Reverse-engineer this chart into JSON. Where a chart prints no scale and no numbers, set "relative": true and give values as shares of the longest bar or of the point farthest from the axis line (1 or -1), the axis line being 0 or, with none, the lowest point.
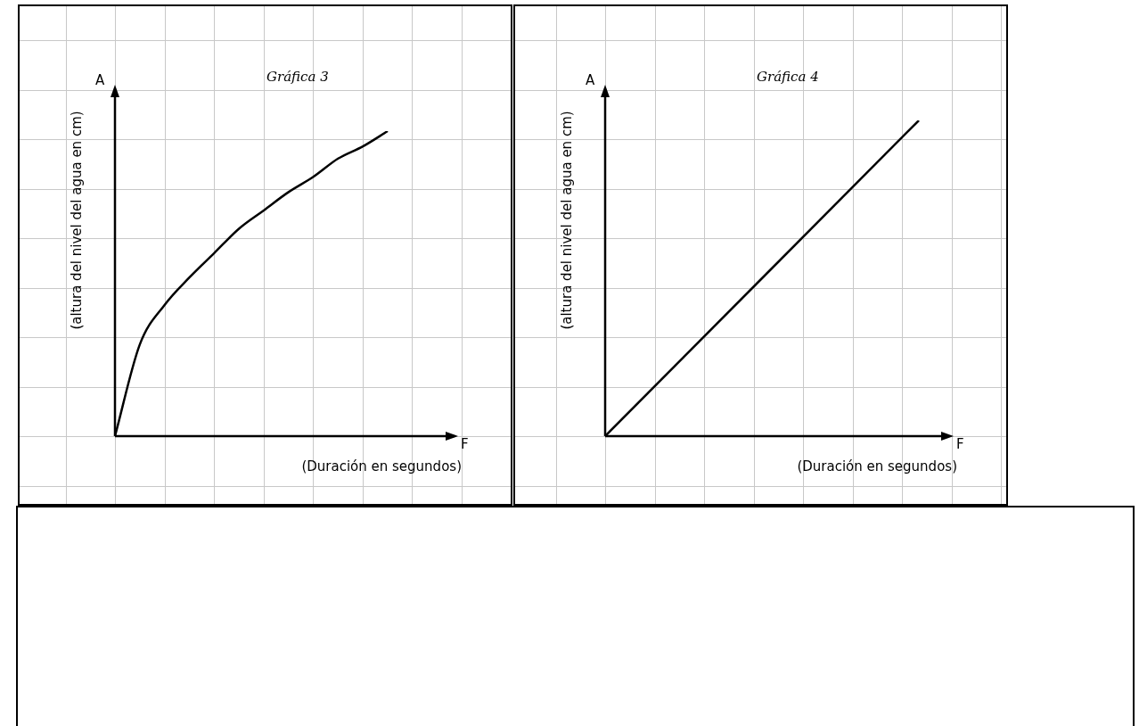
{
  "chart_data": [
    {
      "type": "line",
      "title": "Gráfica 3",
      "xlabel": "(Duración en segundos)",
      "ylabel": "(altura del nivel del agua en cm)",
      "annotations": [
        "A",
        "F"
      ],
      "relative": true,
      "grid": true,
      "marker": "none",
      "line_style": "solid",
      "categories": [
        null,
        null,
        null,
        null,
        null,
        null,
        null,
        null,
        null,
        null,
        null,
        null
      ],
      "series": [
        {
          "color": "#000000",
          "values": [
            0,
            0.3,
            0.43,
            0.52,
            0.6,
            0.68,
            0.74,
            0.8,
            0.85,
            0.91,
            0.95,
            1
          ]
        }
      ]
    },
    {
      "type": "line",
      "title": "Gráfica 4",
      "xlabel": "(Duración en segundos)",
      "ylabel": "(altura del nivel del agua en cm)",
      "annotations": [
        "A",
        "F"
      ],
      "relative": true,
      "grid": true,
      "marker": "none",
      "line_style": "solid",
      "categories": [
        null,
        null
      ],
      "series": [
        {
          "color": "#000000",
          "values": [
            0,
            1
          ]
        }
      ]
    }
  ]
}
